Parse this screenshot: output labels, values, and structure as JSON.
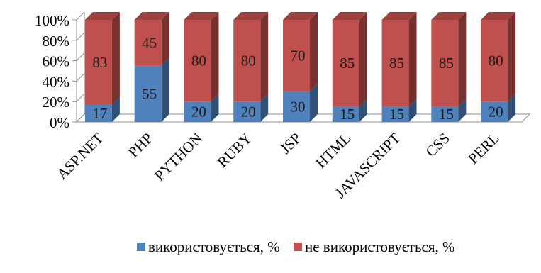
{
  "chart_data": {
    "type": "bar",
    "stacked": true,
    "percent_stacked": true,
    "three_d": true,
    "categories": [
      "ASP.NET",
      "PHP",
      "PYTHON",
      "RUBY",
      "JSP",
      "HTML",
      "JAVASCRIPT",
      "CSS",
      "PERL"
    ],
    "series": [
      {
        "name": "використовується, %",
        "values": [
          17,
          55,
          20,
          20,
          30,
          15,
          15,
          15,
          20
        ],
        "color": "#4f81bd"
      },
      {
        "name": "не використовується, %",
        "values": [
          83,
          45,
          80,
          80,
          70,
          85,
          85,
          85,
          80
        ],
        "color": "#c0504d"
      }
    ],
    "y_ticks": [
      "0%",
      "20%",
      "40%",
      "60%",
      "80%",
      "100%"
    ],
    "ylim": [
      0,
      100
    ],
    "grid": false,
    "legend_position": "bottom",
    "data_labels": true
  }
}
